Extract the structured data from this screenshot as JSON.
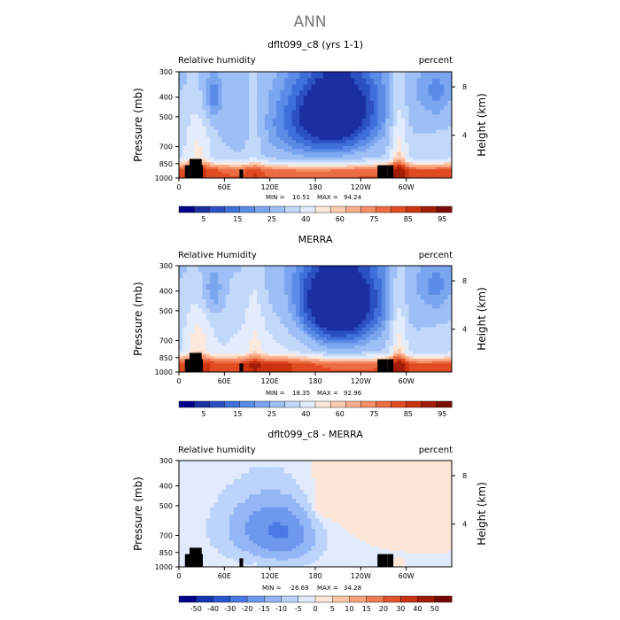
{
  "main_title": "ANN",
  "chart_data": [
    {
      "type": "heatmap",
      "title": "dflt099_c8 (yrs 1-1)",
      "left_label": "Relative humidity",
      "right_label": "percent",
      "xlabel": "",
      "ylabel": "Pressure (mb)",
      "y2label": "Height (km)",
      "x_ticks": [
        "0",
        "60E",
        "120E",
        "180",
        "120W",
        "60W"
      ],
      "y_ticks": [
        "300",
        "400",
        "500",
        "700",
        "850",
        "1000"
      ],
      "y2_ticks": [
        "8",
        "4"
      ],
      "min_label": "MIN =",
      "min": "10.51",
      "max_label": "MAX =",
      "max": "94.24",
      "colorbar_ticks": [
        "5",
        "15",
        "25",
        "40",
        "60",
        "75",
        "85",
        "95"
      ],
      "colors": [
        "#00008b",
        "#1a2fa0",
        "#2b50c0",
        "#3f6fd8",
        "#5a8be6",
        "#7aa5ef",
        "#9dbff6",
        "#c2d8fb",
        "#e2ecfd",
        "#fde8dc",
        "#fccbb0",
        "#f9ad8a",
        "#f48e66",
        "#ec6c43",
        "#e04b22",
        "#c9330f",
        "#a31c06",
        "#7a0c02"
      ],
      "fields": "model"
    },
    {
      "type": "heatmap",
      "title": "MERRA",
      "left_label": "Relative Humidity",
      "right_label": "percent",
      "xlabel": "",
      "ylabel": "Pressure (mb)",
      "y2label": "Height (km)",
      "x_ticks": [
        "0",
        "60E",
        "120E",
        "180",
        "120W",
        "60W"
      ],
      "y_ticks": [
        "300",
        "400",
        "500",
        "700",
        "850",
        "1000"
      ],
      "y2_ticks": [
        "8",
        "4"
      ],
      "min_label": "MIN =",
      "min": "18.35",
      "max_label": "MAX =",
      "max": "92.96",
      "colorbar_ticks": [
        "5",
        "15",
        "25",
        "40",
        "60",
        "75",
        "85",
        "95"
      ],
      "fields": "obs"
    },
    {
      "type": "heatmap",
      "title": "dflt099_c8 - MERRA",
      "left_label": "Relative humidity",
      "right_label": "percent",
      "xlabel": "",
      "ylabel": "Pressure (mb)",
      "y2label": "Height (km)",
      "x_ticks": [
        "0",
        "60E",
        "120E",
        "180",
        "120W",
        "60W"
      ],
      "y_ticks": [
        "300",
        "400",
        "500",
        "700",
        "850",
        "1000"
      ],
      "y2_ticks": [
        "8",
        "4"
      ],
      "min_label": "MIN =",
      "min": "-26.69",
      "max_label": "MAX =",
      "max": "34.28",
      "colorbar_ticks": [
        "-50",
        "-40",
        "-30",
        "-20",
        "-15",
        "-10",
        "-5",
        "0",
        "5",
        "10",
        "15",
        "20",
        "30",
        "40",
        "50"
      ],
      "fields": "diff"
    }
  ]
}
